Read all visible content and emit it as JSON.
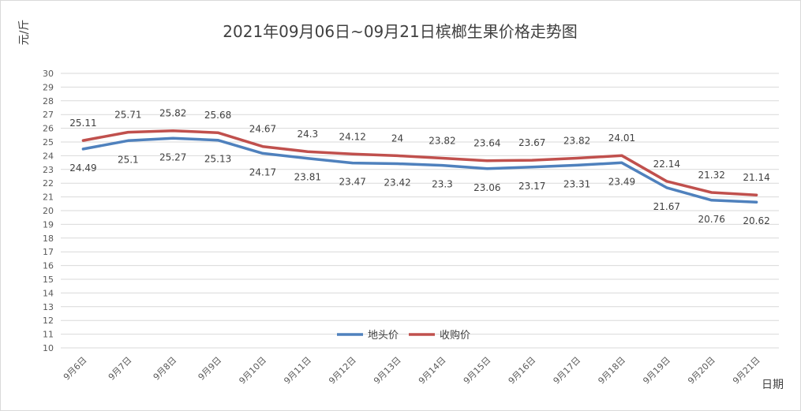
{
  "chart_data": {
    "type": "line",
    "title": "2021年09月06日~09月21日槟榔生果价格走势图",
    "ylabel": "元/斤",
    "xlabel": "日期",
    "ylim": [
      10,
      30
    ],
    "yticks": [
      10,
      11,
      12,
      13,
      14,
      15,
      16,
      17,
      18,
      19,
      20,
      21,
      22,
      23,
      24,
      25,
      26,
      27,
      28,
      29,
      30
    ],
    "grid": true,
    "legend": "bottom-center",
    "categories": [
      "9月6日",
      "9月7日",
      "9月8日",
      "9月9日",
      "9月10日",
      "9月11日",
      "9月12日",
      "9月13日",
      "9月14日",
      "9月15日",
      "9月16日",
      "9月17日",
      "9月18日",
      "9月19日",
      "9月20日",
      "9月21日"
    ],
    "series": [
      {
        "name": "地头价",
        "color": "#4f81bd",
        "values": [
          24.49,
          25.1,
          25.27,
          25.13,
          24.17,
          23.81,
          23.47,
          23.42,
          23.3,
          23.06,
          23.17,
          23.31,
          23.49,
          21.67,
          20.76,
          20.62
        ]
      },
      {
        "name": "收购价",
        "color": "#c0504d",
        "values": [
          25.11,
          25.71,
          25.82,
          25.68,
          24.67,
          24.3,
          24.12,
          24,
          23.82,
          23.64,
          23.67,
          23.82,
          24.01,
          22.14,
          21.32,
          21.14
        ]
      }
    ]
  }
}
